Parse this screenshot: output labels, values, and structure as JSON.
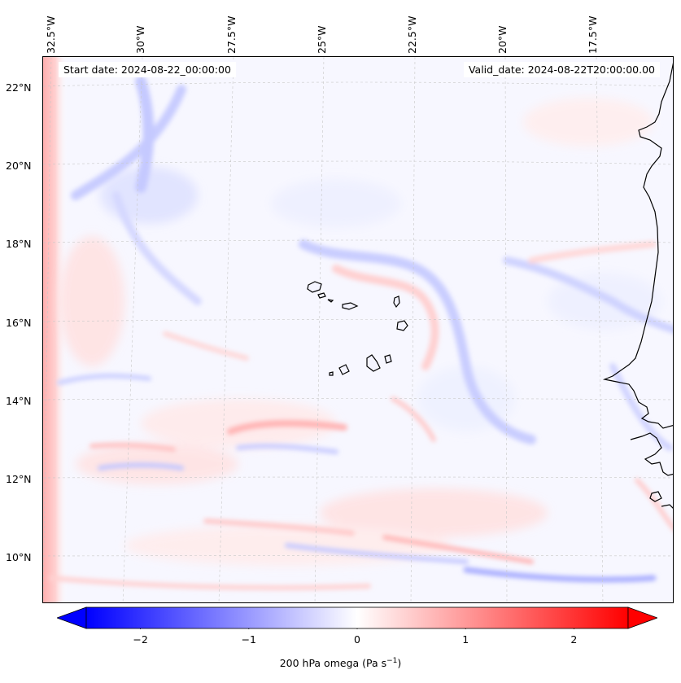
{
  "header": {
    "start_date": "Start date: 2024-08-22_00:00:00",
    "valid_date": "Valid_date: 2024-08-22T20:00:00.00"
  },
  "map": {
    "longitude_labels": [
      "32.5°W",
      "30°W",
      "27.5°W",
      "25°W",
      "22.5°W",
      "20°W",
      "17.5°W"
    ],
    "latitude_labels": [
      "22°N",
      "20°N",
      "18°N",
      "16°N",
      "14°N",
      "12°N",
      "10°N"
    ],
    "field": "200 hPa omega",
    "region": "Eastern tropical Atlantic / West African coast, Cape Verde islands"
  },
  "colorbar": {
    "ticks": [
      "−2",
      "−1",
      "0",
      "1",
      "2"
    ],
    "tick_values": [
      -2,
      -1,
      0,
      1,
      2
    ],
    "range": [
      -2.5,
      2.5
    ],
    "label_main": "200 hPa omega (Pa s",
    "label_exp": "−1",
    "label_close": ")",
    "low_color": "#0000ff",
    "mid_color": "#ffffff",
    "high_color": "#ff0000"
  }
}
